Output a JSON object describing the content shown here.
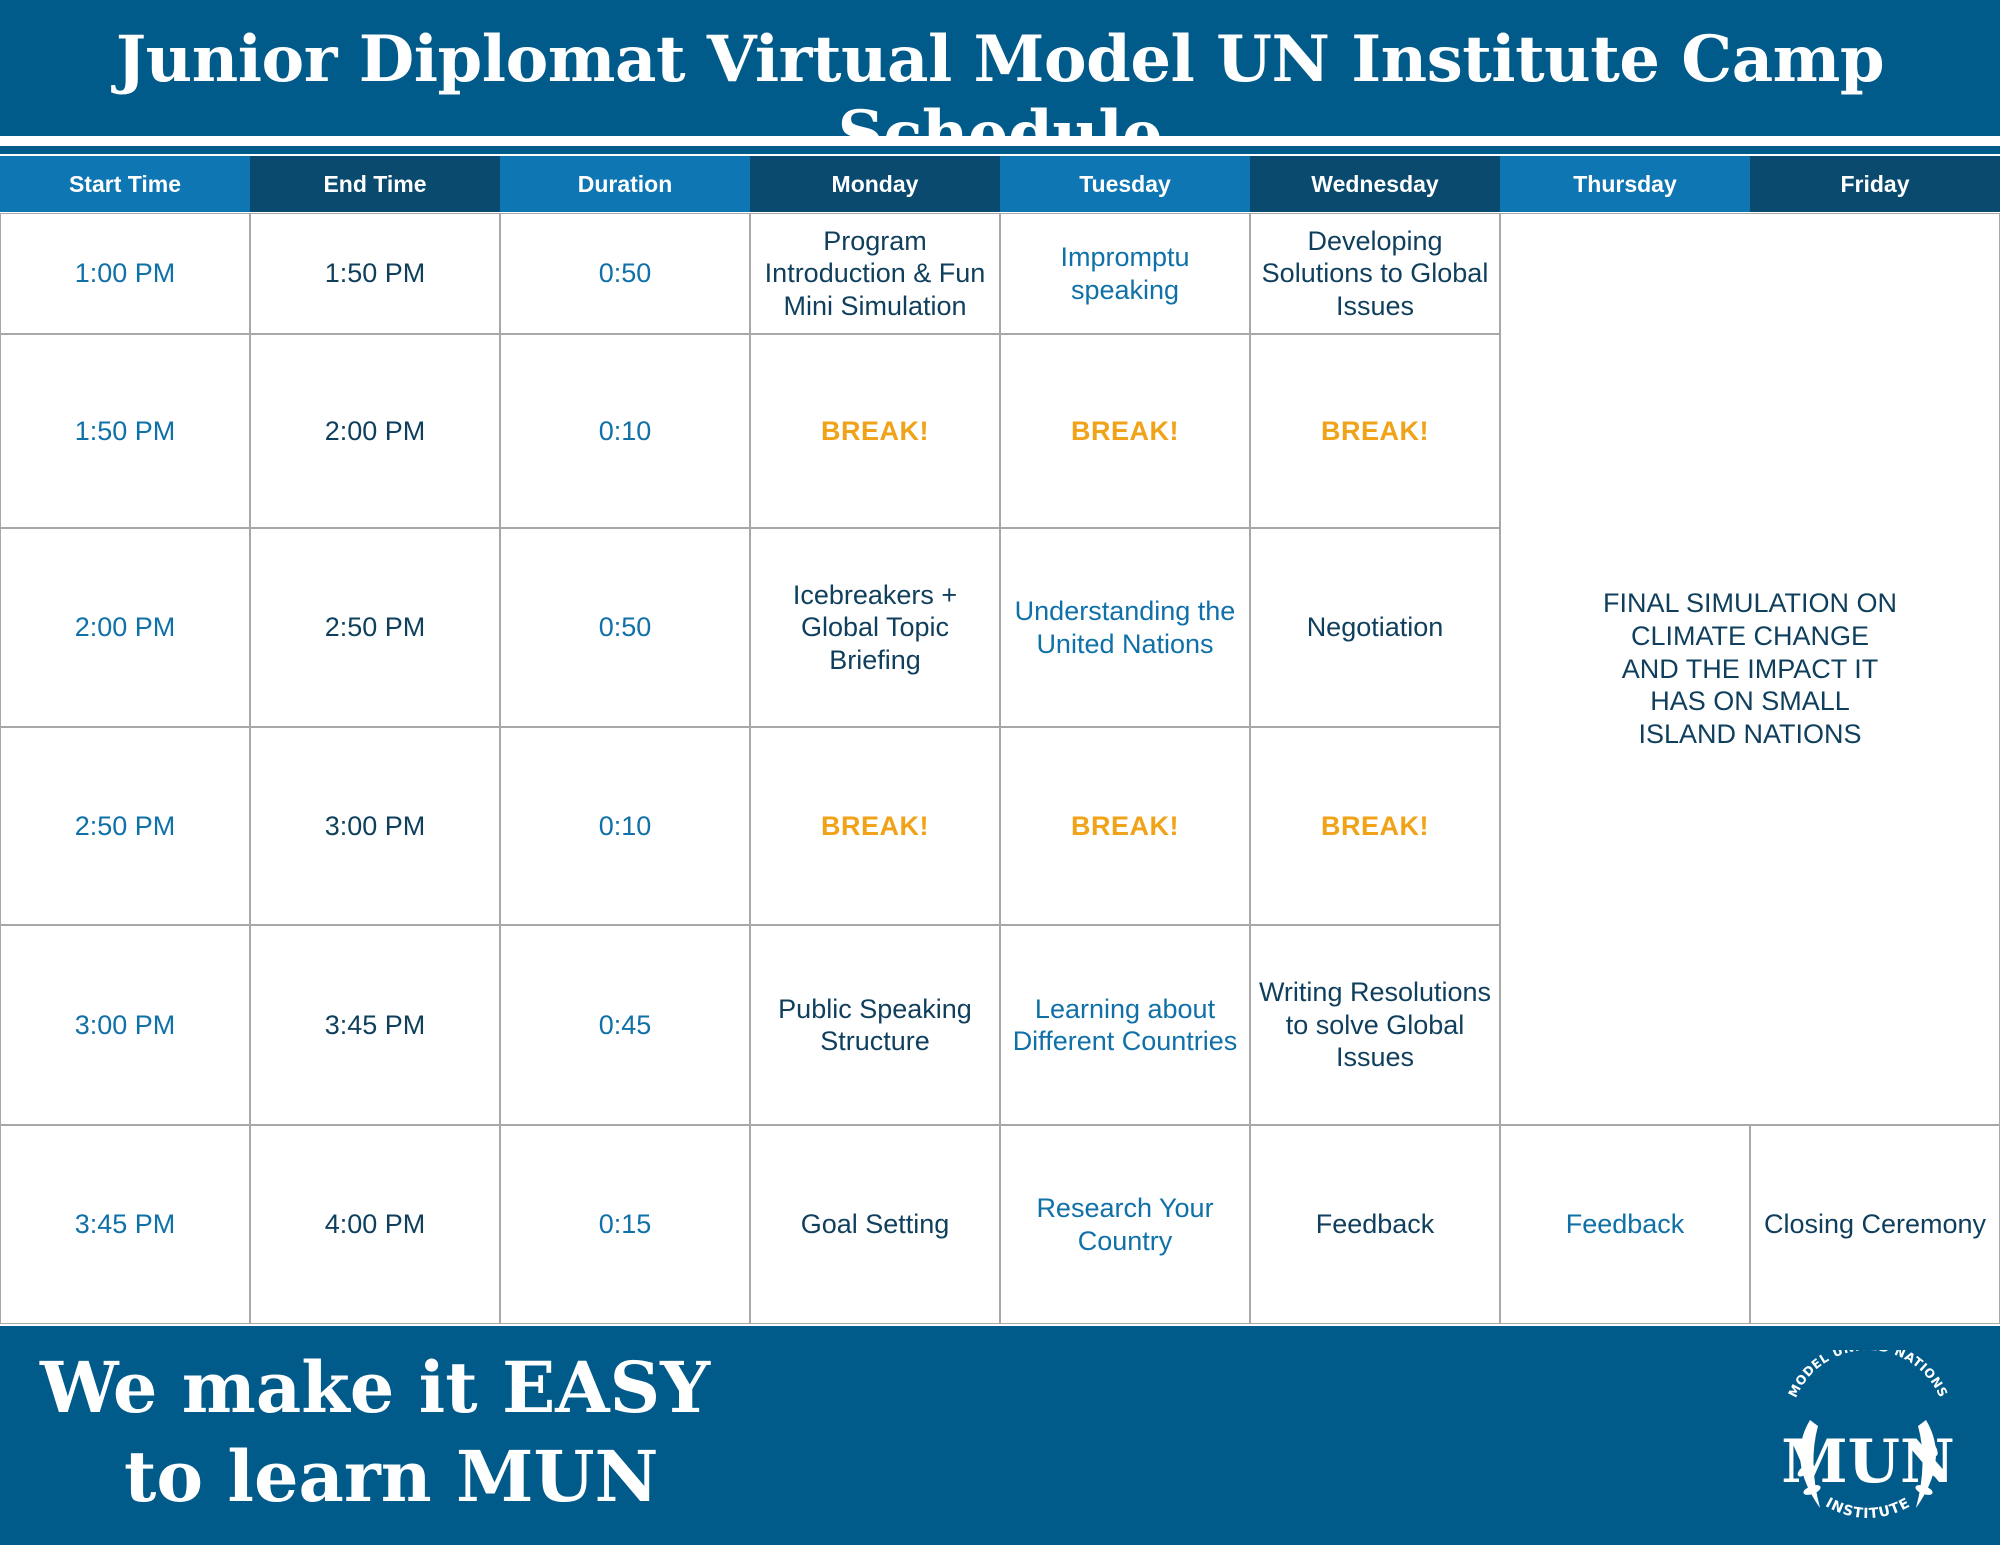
{
  "title": "Junior Diplomat Virtual Model UN Institute Camp Schedule",
  "colors": {
    "primary": "#005b8a",
    "header_light": "#0e76b3",
    "header_dark": "#0a4a6f",
    "break": "#f0a318",
    "text_blue": "#1070a8",
    "text_dark": "#0f3f5c"
  },
  "columns": [
    "Start Time",
    "End Time",
    "Duration",
    "Monday",
    "Tuesday",
    "Wednesday",
    "Thursday",
    "Friday"
  ],
  "rows": [
    {
      "start": "1:00 PM",
      "end": "1:50 PM",
      "duration": "0:50",
      "monday": "Program Introduction & Fun Mini Simulation",
      "tuesday": "Impromptu speaking",
      "wednesday": "Developing Solutions to Global Issues"
    },
    {
      "start": "1:50 PM",
      "end": "2:00 PM",
      "duration": "0:10",
      "monday": "BREAK!",
      "tuesday": "BREAK!",
      "wednesday": "BREAK!"
    },
    {
      "start": "2:00 PM",
      "end": "2:50 PM",
      "duration": "0:50",
      "monday": "Icebreakers + Global Topic Briefing",
      "tuesday": "Understanding the United Nations",
      "wednesday": "Negotiation"
    },
    {
      "start": "2:50 PM",
      "end": "3:00 PM",
      "duration": "0:10",
      "monday": "BREAK!",
      "tuesday": "BREAK!",
      "wednesday": "BREAK!"
    },
    {
      "start": "3:00 PM",
      "end": "3:45 PM",
      "duration": "0:45",
      "monday": "Public Speaking Structure",
      "tuesday": "Learning about Different Countries",
      "wednesday": "Writing Resolutions to solve Global Issues"
    },
    {
      "start": "3:45 PM",
      "end": "4:00 PM",
      "duration": "0:15",
      "monday": "Goal Setting",
      "tuesday": "Research Your Country",
      "wednesday": "Feedback",
      "thursday": "Feedback",
      "friday": "Closing Ceremony"
    }
  ],
  "final_simulation": "FINAL SIMULATION ON CLIMATE CHANGE AND THE IMPACT IT HAS ON SMALL ISLAND NATIONS",
  "footer": {
    "line1": "We make it EASY",
    "line2": "to learn MUN"
  },
  "logo": {
    "top_text": "MODEL UNITED NATIONS",
    "main_text": "MUN",
    "bottom_text": "INSTITUTE",
    "icon": "laurel-wreath-icon"
  }
}
